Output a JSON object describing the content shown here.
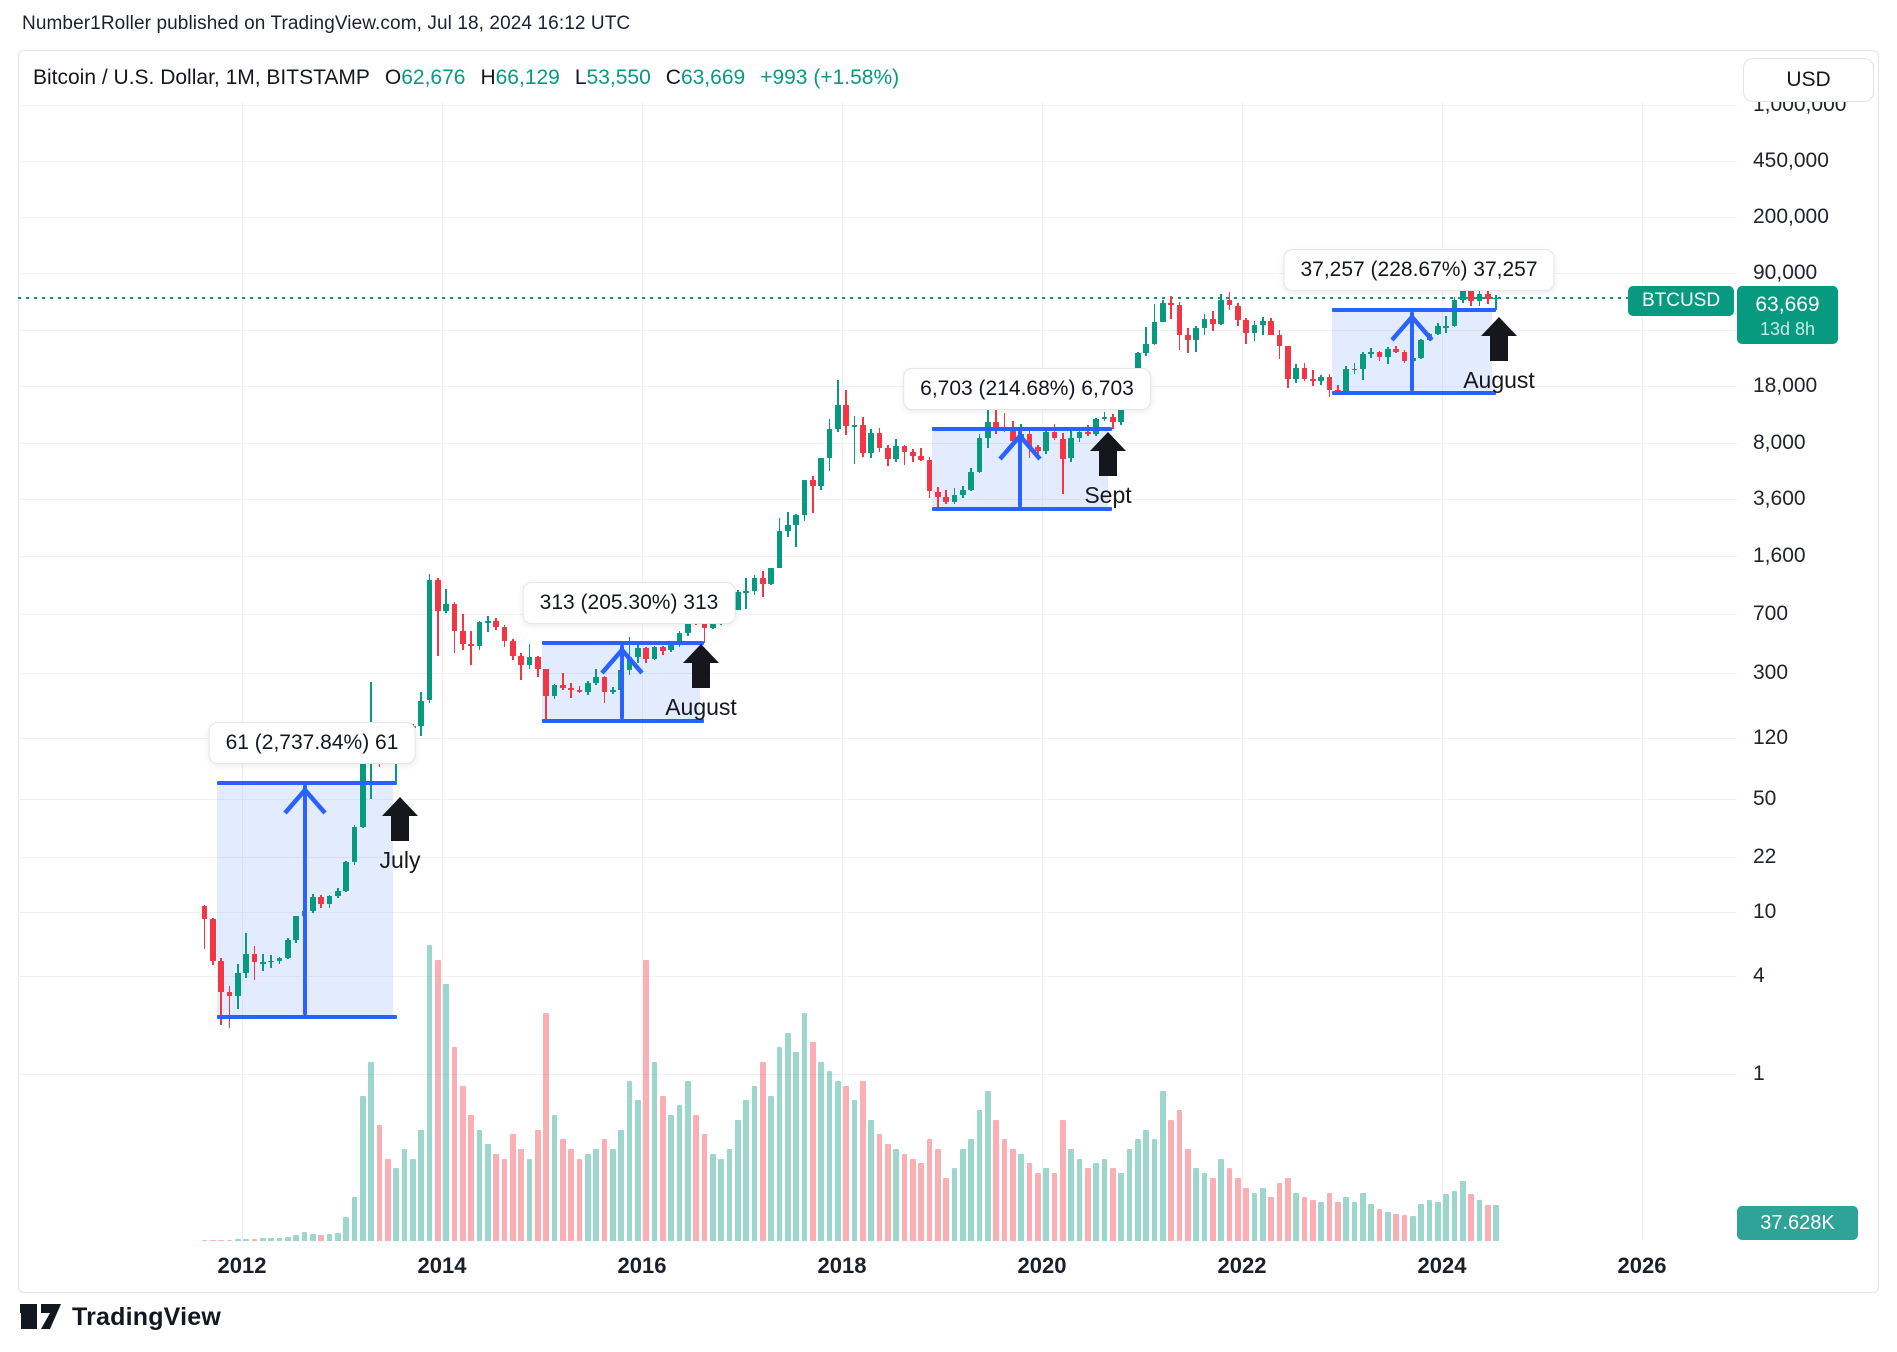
{
  "header": {
    "published_line": "Number1Roller published on TradingView.com, Jul 18, 2024 16:12 UTC"
  },
  "legend": {
    "title": "Bitcoin / U.S. Dollar, 1M, BITSTAMP",
    "o_label": "O",
    "o_value": "62,676",
    "h_label": "H",
    "h_value": "66,129",
    "l_label": "L",
    "l_value": "53,550",
    "c_label": "C",
    "c_value": "63,669",
    "change": "+993 (+1.58%)"
  },
  "toolbar": {
    "currency_button": "USD"
  },
  "badges": {
    "symbol": "BTCUSD",
    "last_price": "63,669",
    "countdown": "13d 8h",
    "volume": "37.628K"
  },
  "footer": {
    "brand": "TradingView"
  },
  "colors": {
    "up": "#089981",
    "down": "#f23645",
    "volume_up": "rgba(8,153,129,0.40)",
    "volume_down": "rgba(242,54,69,0.40)",
    "annotation_blue": "#2962ff",
    "annotation_fill": "rgba(41,98,255,0.13)",
    "price_line_green": "#089981",
    "badge_green": "#089981",
    "volume_badge_teal": "#2fa398",
    "marker_black": "#15171c",
    "grid": "#f0f2f6"
  },
  "chart_data": {
    "type": "candlestick",
    "symbol": "BTCUSD",
    "exchange": "BITSTAMP",
    "interval": "1M",
    "title": "Bitcoin / U.S. Dollar, 1M, BITSTAMP",
    "price_scale_type": "log",
    "legend_position": "none",
    "grid": true,
    "current_price": 63669,
    "current_volume_k": 37.628,
    "y_axis_labels": [
      {
        "value": 1000000,
        "text": "1,000,000"
      },
      {
        "value": 450000,
        "text": "450,000"
      },
      {
        "value": 200000,
        "text": "200,000"
      },
      {
        "value": 90000,
        "text": "90,000"
      },
      {
        "value": 18000,
        "text": "18,000"
      },
      {
        "value": 8000,
        "text": "8,000"
      },
      {
        "value": 3600,
        "text": "3,600"
      },
      {
        "value": 1600,
        "text": "1,600"
      },
      {
        "value": 700,
        "text": "700"
      },
      {
        "value": 300,
        "text": "300"
      },
      {
        "value": 120,
        "text": "120"
      },
      {
        "value": 50,
        "text": "50"
      },
      {
        "value": 22,
        "text": "22"
      },
      {
        "value": 10,
        "text": "10"
      },
      {
        "value": 4,
        "text": "4"
      },
      {
        "value": 1,
        "text": "1"
      }
    ],
    "hidden_grid_levels": [
      40000
    ],
    "x_axis_years": [
      "2012",
      "2014",
      "2016",
      "2018",
      "2020",
      "2022",
      "2024",
      "2026"
    ],
    "measured_moves": [
      {
        "label": "61 (2,737.84%) 61",
        "marker": "July",
        "t_start": 2011.75,
        "t_end": 2013.51,
        "price_start": 2.23,
        "price_end": 63.2,
        "t_arrow": 2012.63
      },
      {
        "label": "313 (205.30%) 313",
        "marker": "August",
        "t_start": 2015.0,
        "t_end": 2016.58,
        "price_start": 152.5,
        "price_end": 465.9,
        "t_arrow": 2015.8
      },
      {
        "label": "6,703 (214.68%) 6,703",
        "marker": "Sept",
        "t_start": 2018.9,
        "t_end": 2020.66,
        "price_start": 3122,
        "price_end": 9825,
        "t_arrow": 2019.78
      },
      {
        "label": "37,257 (228.67%) 37,257",
        "marker": "August",
        "t_start": 2022.9,
        "t_end": 2024.5,
        "price_start": 16293,
        "price_end": 53550,
        "t_arrow": 2023.7
      }
    ],
    "candles": [
      [
        "2011-08",
        10.9,
        11.1,
        5.9,
        9.1,
        0.5
      ],
      [
        "2011-09",
        9.1,
        9.2,
        4.7,
        5.0,
        0.8
      ],
      [
        "2011-10",
        5.0,
        5.2,
        2.0,
        3.2,
        1.2
      ],
      [
        "2011-11",
        3.2,
        3.5,
        1.9,
        3.0,
        1.5
      ],
      [
        "2011-12",
        3.0,
        4.8,
        2.5,
        4.2,
        1.8
      ],
      [
        "2012-01",
        4.2,
        7.4,
        3.9,
        5.5,
        2
      ],
      [
        "2012-02",
        5.5,
        6.2,
        3.8,
        4.9,
        2.5
      ],
      [
        "2012-03",
        4.9,
        5.5,
        4.3,
        4.9,
        3
      ],
      [
        "2012-04",
        4.9,
        5.4,
        4.5,
        5.0,
        3
      ],
      [
        "2012-05",
        5.0,
        5.3,
        4.8,
        5.2,
        3.5
      ],
      [
        "2012-06",
        5.2,
        6.9,
        5.1,
        6.7,
        4
      ],
      [
        "2012-07",
        6.7,
        9.5,
        6.4,
        9.4,
        6
      ],
      [
        "2012-08",
        9.4,
        16.4,
        7.5,
        10.2,
        9
      ],
      [
        "2012-09",
        10.2,
        12.9,
        9.8,
        12.4,
        7
      ],
      [
        "2012-10",
        12.4,
        12.8,
        10.6,
        11.2,
        6
      ],
      [
        "2012-11",
        11.2,
        12.7,
        10.5,
        12.6,
        7
      ],
      [
        "2012-12",
        12.6,
        14.0,
        12.2,
        13.5,
        8
      ],
      [
        "2013-01",
        13.5,
        20.6,
        13.2,
        20.4,
        25
      ],
      [
        "2013-02",
        20.4,
        34.5,
        19.5,
        33.4,
        45
      ],
      [
        "2013-03",
        33.4,
        95,
        33,
        93,
        150
      ],
      [
        "2013-04",
        93,
        266,
        50,
        139,
        185
      ],
      [
        "2013-05",
        139,
        146,
        79,
        128,
        120
      ],
      [
        "2013-06",
        128,
        130,
        88,
        97,
        85
      ],
      [
        "2013-07",
        97,
        111,
        65,
        106,
        75
      ],
      [
        "2013-08",
        106,
        147,
        92,
        141,
        95
      ],
      [
        "2013-09",
        141,
        147,
        109,
        141,
        85
      ],
      [
        "2013-10",
        141,
        230,
        123,
        204,
        115
      ],
      [
        "2013-11",
        204,
        1242,
        198,
        1130,
        305
      ],
      [
        "2013-12",
        1130,
        1163,
        382,
        732,
        290
      ],
      [
        "2014-01",
        732,
        1000,
        710,
        806,
        265
      ],
      [
        "2014-02",
        806,
        830,
        400,
        550,
        200
      ],
      [
        "2014-03",
        550,
        700,
        420,
        454,
        160
      ],
      [
        "2014-04",
        454,
        550,
        340,
        446,
        130
      ],
      [
        "2014-05",
        446,
        630,
        420,
        627,
        115
      ],
      [
        "2014-06",
        627,
        680,
        540,
        635,
        100
      ],
      [
        "2014-07",
        635,
        660,
        560,
        583,
        90
      ],
      [
        "2014-08",
        583,
        600,
        440,
        478,
        85
      ],
      [
        "2014-09",
        478,
        490,
        365,
        387,
        110
      ],
      [
        "2014-10",
        387,
        400,
        275,
        338,
        95
      ],
      [
        "2014-11",
        338,
        460,
        320,
        378,
        85
      ],
      [
        "2014-12",
        378,
        385,
        285,
        318,
        115
      ],
      [
        "2015-01",
        318,
        320,
        152,
        217,
        235
      ],
      [
        "2015-02",
        217,
        260,
        210,
        254,
        130
      ],
      [
        "2015-03",
        254,
        300,
        236,
        244,
        105
      ],
      [
        "2015-04",
        244,
        262,
        210,
        236,
        95
      ],
      [
        "2015-05",
        236,
        250,
        227,
        230,
        85
      ],
      [
        "2015-06",
        230,
        268,
        220,
        263,
        90
      ],
      [
        "2015-07",
        263,
        318,
        255,
        284,
        95
      ],
      [
        "2015-08",
        284,
        288,
        198,
        230,
        105
      ],
      [
        "2015-09",
        230,
        246,
        223,
        236,
        95
      ],
      [
        "2015-10",
        236,
        334,
        234,
        314,
        115
      ],
      [
        "2015-11",
        314,
        502,
        295,
        377,
        165
      ],
      [
        "2015-12",
        377,
        467,
        350,
        430,
        145
      ],
      [
        "2016-01",
        430,
        436,
        350,
        368,
        290
      ],
      [
        "2016-02",
        368,
        447,
        365,
        437,
        185
      ],
      [
        "2016-03",
        437,
        444,
        388,
        416,
        150
      ],
      [
        "2016-04",
        416,
        470,
        410,
        448,
        130
      ],
      [
        "2016-05",
        448,
        550,
        440,
        531,
        140
      ],
      [
        "2016-06",
        531,
        780,
        510,
        673,
        165
      ],
      [
        "2016-07",
        673,
        700,
        600,
        624,
        130
      ],
      [
        "2016-08",
        624,
        630,
        465,
        575,
        110
      ],
      [
        "2016-09",
        575,
        630,
        565,
        609,
        90
      ],
      [
        "2016-10",
        609,
        720,
        595,
        700,
        85
      ],
      [
        "2016-11",
        700,
        755,
        670,
        745,
        95
      ],
      [
        "2016-12",
        745,
        982,
        740,
        963,
        125
      ],
      [
        "2017-01",
        963,
        1170,
        750,
        970,
        145
      ],
      [
        "2017-02",
        970,
        1225,
        920,
        1179,
        160
      ],
      [
        "2017-03",
        1179,
        1290,
        890,
        1071,
        185
      ],
      [
        "2017-04",
        1071,
        1350,
        1060,
        1347,
        150
      ],
      [
        "2017-05",
        1347,
        2760,
        1340,
        2286,
        200
      ],
      [
        "2017-06",
        2286,
        2980,
        2100,
        2480,
        215
      ],
      [
        "2017-07",
        2480,
        2920,
        1830,
        2875,
        195
      ],
      [
        "2017-08",
        2875,
        4750,
        2650,
        4703,
        235
      ],
      [
        "2017-09",
        4703,
        4980,
        2970,
        4360,
        205
      ],
      [
        "2017-10",
        4360,
        6470,
        4100,
        6440,
        185
      ],
      [
        "2017-11",
        6440,
        11300,
        5370,
        9800,
        175
      ],
      [
        "2017-12",
        9800,
        19666,
        9380,
        13850,
        165
      ],
      [
        "2018-01",
        13850,
        17176,
        9000,
        10221,
        160
      ],
      [
        "2018-02",
        10221,
        11780,
        5920,
        10360,
        145
      ],
      [
        "2018-03",
        10360,
        11660,
        6600,
        6926,
        165
      ],
      [
        "2018-04",
        6926,
        9760,
        6425,
        9240,
        125
      ],
      [
        "2018-05",
        9240,
        9990,
        7030,
        7485,
        110
      ],
      [
        "2018-06",
        7485,
        7750,
        5770,
        6390,
        100
      ],
      [
        "2018-07",
        6390,
        8500,
        6070,
        7730,
        95
      ],
      [
        "2018-08",
        7730,
        7760,
        5850,
        7011,
        90
      ],
      [
        "2018-09",
        7011,
        7410,
        6100,
        6625,
        85
      ],
      [
        "2018-10",
        6625,
        7470,
        6190,
        6300,
        80
      ],
      [
        "2018-11",
        6300,
        6540,
        3640,
        4017,
        105
      ],
      [
        "2018-12",
        4017,
        4310,
        3150,
        3692,
        95
      ],
      [
        "2019-01",
        3692,
        4110,
        3350,
        3437,
        65
      ],
      [
        "2019-02",
        3437,
        4220,
        3350,
        3816,
        75
      ],
      [
        "2019-03",
        3816,
        4320,
        3660,
        4100,
        95
      ],
      [
        "2019-04",
        4100,
        5640,
        4050,
        5320,
        105
      ],
      [
        "2019-05",
        5320,
        9090,
        5200,
        8555,
        135
      ],
      [
        "2019-06",
        8555,
        13880,
        7430,
        10760,
        155
      ],
      [
        "2019-07",
        10760,
        13200,
        9080,
        10080,
        125
      ],
      [
        "2019-08",
        10080,
        12330,
        9320,
        9588,
        105
      ],
      [
        "2019-09",
        9588,
        10950,
        7700,
        8280,
        95
      ],
      [
        "2019-10",
        8280,
        10540,
        7300,
        9140,
        90
      ],
      [
        "2019-11",
        9140,
        9510,
        6510,
        7541,
        80
      ],
      [
        "2019-12",
        7541,
        7800,
        6420,
        7180,
        70
      ],
      [
        "2020-01",
        7180,
        9580,
        6850,
        9350,
        75
      ],
      [
        "2020-02",
        9350,
        10500,
        8400,
        8550,
        70
      ],
      [
        "2020-03",
        8550,
        9190,
        3850,
        6420,
        125
      ],
      [
        "2020-04",
        6420,
        9470,
        6140,
        8630,
        95
      ],
      [
        "2020-05",
        8630,
        10070,
        8100,
        9448,
        85
      ],
      [
        "2020-06",
        9448,
        10380,
        8830,
        9135,
        75
      ],
      [
        "2020-07",
        9135,
        11450,
        8900,
        11350,
        80
      ],
      [
        "2020-08",
        11350,
        12480,
        11000,
        11650,
        85
      ],
      [
        "2020-09",
        11650,
        12050,
        9825,
        10776,
        75
      ],
      [
        "2020-10",
        10776,
        14100,
        10380,
        13800,
        70
      ],
      [
        "2020-11",
        13800,
        19863,
        13200,
        19698,
        95
      ],
      [
        "2020-12",
        19698,
        29300,
        17570,
        28990,
        105
      ],
      [
        "2021-01",
        28990,
        41950,
        27700,
        33100,
        115
      ],
      [
        "2021-02",
        33100,
        58350,
        32300,
        45160,
        105
      ],
      [
        "2021-03",
        45160,
        61800,
        45000,
        58740,
        155
      ],
      [
        "2021-04",
        58740,
        64900,
        46930,
        57720,
        125
      ],
      [
        "2021-05",
        57720,
        59500,
        30000,
        37290,
        135
      ],
      [
        "2021-06",
        37290,
        41330,
        28800,
        35040,
        95
      ],
      [
        "2021-07",
        35040,
        42450,
        29300,
        41490,
        75
      ],
      [
        "2021-08",
        41490,
        50500,
        37330,
        47130,
        70
      ],
      [
        "2021-09",
        47130,
        52950,
        39600,
        43790,
        65
      ],
      [
        "2021-10",
        43790,
        67000,
        43280,
        61320,
        85
      ],
      [
        "2021-11",
        61320,
        69000,
        53300,
        56950,
        75
      ],
      [
        "2021-12",
        56950,
        59100,
        42330,
        46210,
        65
      ],
      [
        "2022-01",
        46210,
        47990,
        32950,
        38480,
        55
      ],
      [
        "2022-02",
        38480,
        45850,
        34300,
        43190,
        50
      ],
      [
        "2022-03",
        43190,
        48240,
        37550,
        45540,
        55
      ],
      [
        "2022-04",
        45540,
        47450,
        37600,
        37630,
        45
      ],
      [
        "2022-05",
        37630,
        40020,
        26700,
        31790,
        60
      ],
      [
        "2022-06",
        31790,
        31980,
        17600,
        19985,
        65
      ],
      [
        "2022-07",
        19985,
        24670,
        18780,
        23290,
        50
      ],
      [
        "2022-08",
        23290,
        25200,
        19520,
        20050,
        45
      ],
      [
        "2022-09",
        20050,
        22800,
        18100,
        19425,
        42
      ],
      [
        "2022-10",
        19425,
        21080,
        18190,
        20490,
        40
      ],
      [
        "2022-11",
        20490,
        21480,
        15480,
        17165,
        50
      ],
      [
        "2022-12",
        17165,
        18390,
        16250,
        16540,
        40
      ],
      [
        "2023-01",
        16540,
        23960,
        16490,
        23130,
        45
      ],
      [
        "2023-02",
        23130,
        25250,
        21400,
        23140,
        40
      ],
      [
        "2023-03",
        23140,
        29180,
        19550,
        28470,
        50
      ],
      [
        "2023-04",
        28470,
        31050,
        26940,
        29250,
        38
      ],
      [
        "2023-05",
        29250,
        29840,
        25800,
        27220,
        33
      ],
      [
        "2023-06",
        27220,
        31430,
        24750,
        30470,
        30
      ],
      [
        "2023-07",
        30470,
        31850,
        28850,
        29230,
        28
      ],
      [
        "2023-08",
        29230,
        30180,
        24950,
        25930,
        27
      ],
      [
        "2023-09",
        25930,
        27480,
        24900,
        26960,
        26
      ],
      [
        "2023-10",
        26960,
        35150,
        26550,
        34660,
        38
      ],
      [
        "2023-11",
        34660,
        38450,
        34100,
        37710,
        42
      ],
      [
        "2023-12",
        37710,
        44700,
        37610,
        42270,
        40
      ],
      [
        "2024-01",
        42270,
        48970,
        38500,
        42580,
        48
      ],
      [
        "2024-02",
        42580,
        63930,
        41880,
        61200,
        52
      ],
      [
        "2024-03",
        61200,
        73800,
        59005,
        71330,
        62
      ],
      [
        "2024-04",
        71330,
        72800,
        56500,
        60640,
        48
      ],
      [
        "2024-05",
        60640,
        71950,
        56550,
        67530,
        42
      ],
      [
        "2024-06",
        67530,
        71990,
        58400,
        62670,
        37
      ],
      [
        "2024-07",
        62676,
        66129,
        53550,
        63669,
        37.628
      ]
    ]
  }
}
